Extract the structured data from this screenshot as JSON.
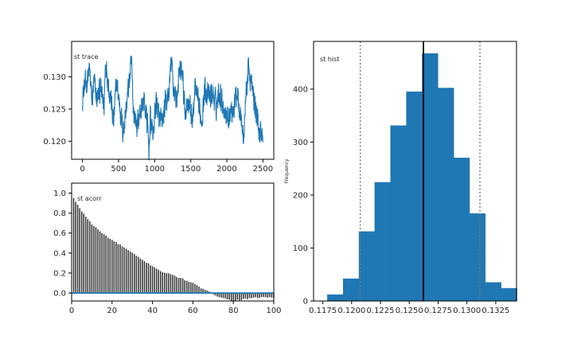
{
  "colors": {
    "series": "#1f77b4",
    "acorr_bar": "#333333",
    "zero_line": "#1f77b4",
    "mean_line": "#000000",
    "hpd_line": "#777777"
  },
  "chart_data": [
    {
      "type": "line",
      "title": "st trace",
      "xlabel": "",
      "ylabel": "",
      "xlim": [
        -150,
        2650
      ],
      "ylim": [
        0.1172,
        0.1355
      ],
      "xticks": [
        0,
        500,
        1000,
        1500,
        2000,
        2500
      ],
      "xtick_labels": [
        "0",
        "500",
        "1000",
        "1500",
        "2000",
        "2500"
      ],
      "yticks": [
        0.12,
        0.125,
        0.13
      ],
      "ytick_labels": [
        "0.120",
        "0.125",
        "0.130"
      ],
      "series_anchors": {
        "x": [
          0,
          50,
          100,
          130,
          160,
          200,
          250,
          300,
          320,
          360,
          400,
          430,
          470,
          500,
          530,
          560,
          600,
          640,
          680,
          700,
          720,
          760,
          800,
          850,
          900,
          920,
          940,
          980,
          1020,
          1060,
          1100,
          1150,
          1200,
          1230,
          1260,
          1300,
          1340,
          1380,
          1420,
          1460,
          1500,
          1530,
          1560,
          1600,
          1650,
          1700,
          1750,
          1800,
          1850,
          1900,
          1950,
          2000,
          2050,
          2100,
          2150,
          2200,
          2230,
          2260,
          2300,
          2350,
          2400,
          2450,
          2500
        ],
        "y": [
          0.127,
          0.129,
          0.131,
          0.126,
          0.129,
          0.1265,
          0.128,
          0.1255,
          0.133,
          0.129,
          0.126,
          0.1225,
          0.129,
          0.127,
          0.1245,
          0.1215,
          0.1245,
          0.1285,
          0.132,
          0.126,
          0.124,
          0.1225,
          0.1245,
          0.1265,
          0.1225,
          0.1185,
          0.1235,
          0.121,
          0.1265,
          0.1235,
          0.1225,
          0.1255,
          0.1275,
          0.1325,
          0.1285,
          0.1265,
          0.13,
          0.131,
          0.1245,
          0.1265,
          0.1245,
          0.1235,
          0.1285,
          0.1255,
          0.1235,
          0.1285,
          0.1265,
          0.1275,
          0.1255,
          0.128,
          0.1255,
          0.124,
          0.1245,
          0.1255,
          0.128,
          0.1235,
          0.12,
          0.1265,
          0.1315,
          0.128,
          0.125,
          0.1215,
          0.121
        ]
      }
    },
    {
      "type": "bar",
      "title": "st acorr",
      "xlabel": "",
      "ylabel": "",
      "xlim": [
        0,
        100
      ],
      "ylim": [
        -0.08,
        1.1
      ],
      "xticks": [
        0,
        20,
        40,
        60,
        80,
        100
      ],
      "xtick_labels": [
        "0",
        "20",
        "40",
        "60",
        "80",
        "100"
      ],
      "yticks": [
        0,
        0.2,
        0.4,
        0.6,
        0.8,
        1.0
      ],
      "ytick_labels": [
        "0.0",
        "0.2",
        "0.4",
        "0.6",
        "0.8",
        "1.0"
      ],
      "lags_range": [
        1,
        100
      ],
      "acf_anchors": {
        "lag": [
          1,
          2,
          3,
          5,
          8,
          10,
          15,
          20,
          25,
          30,
          35,
          40,
          45,
          50,
          55,
          60,
          63,
          66,
          68,
          70,
          72,
          75,
          78,
          80,
          83,
          86,
          90,
          95,
          100
        ],
        "value": [
          0.95,
          0.91,
          0.88,
          0.82,
          0.74,
          0.69,
          0.6,
          0.53,
          0.47,
          0.4,
          0.33,
          0.27,
          0.21,
          0.18,
          0.14,
          0.1,
          0.06,
          0.03,
          0.01,
          -0.01,
          -0.03,
          -0.05,
          -0.07,
          -0.075,
          -0.07,
          -0.06,
          -0.05,
          -0.04,
          -0.05
        ]
      }
    },
    {
      "type": "bar",
      "subtype": "histogram",
      "title": "st hist",
      "xlabel": "",
      "ylabel": "Frequency",
      "xlim": [
        0.1167,
        0.1343
      ],
      "ylim": [
        0,
        490
      ],
      "xticks": [
        0.1175,
        0.12,
        0.1225,
        0.125,
        0.1275,
        0.13,
        0.1325
      ],
      "xtick_labels": [
        "0.1175",
        "0.1200",
        "0.1225",
        "0.1250",
        "0.1275",
        "0.1300",
        "0.1325"
      ],
      "yticks": [
        0,
        100,
        200,
        300,
        400
      ],
      "ytick_labels": [
        "0",
        "100",
        "200",
        "300",
        "400"
      ],
      "bin_edges": [
        0.1179,
        0.11927,
        0.12064,
        0.12201,
        0.12338,
        0.12475,
        0.12612,
        0.12749,
        0.12886,
        0.13023,
        0.1316,
        0.13297,
        0.13434
      ],
      "counts": [
        12,
        42,
        131,
        224,
        331,
        395,
        467,
        402,
        270,
        165,
        35,
        24
      ],
      "mean": 0.12623,
      "hpd_interval": [
        0.12075,
        0.13113
      ]
    }
  ]
}
